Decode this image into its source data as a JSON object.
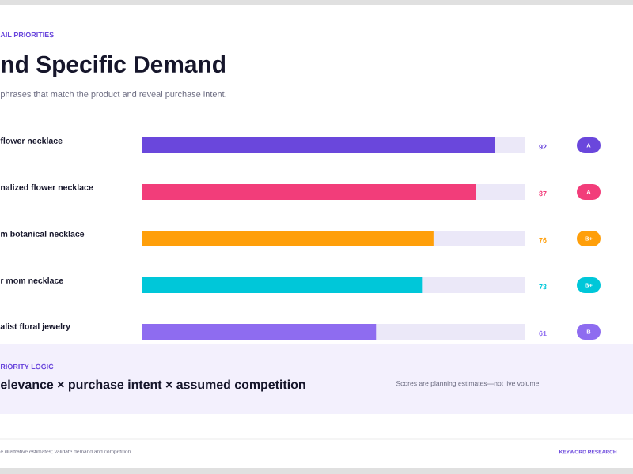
{
  "chart_data": {
    "type": "bar",
    "orientation": "horizontal",
    "title": "nd Specific Demand",
    "subtitle": "phrases that match the product and reveal purchase intent.",
    "categories": [
      "flower necklace",
      "nalized flower necklace",
      "m botanical necklace",
      "r mom necklace",
      "alist floral jewelry"
    ],
    "values": [
      92,
      87,
      76,
      73,
      61
    ],
    "colors": [
      "#6a47dc",
      "#f23d7a",
      "#ff9f0a",
      "#00c7d9",
      "#8e6cf0"
    ],
    "xlim": [
      0,
      100
    ],
    "data_labels": true,
    "annotations": [
      "AIL PRIORITIES",
      "A",
      "A",
      "B+",
      "B+",
      "B",
      "RIORITY LOGIC",
      "elevance × purchase intent × assumed competition",
      "Scores are planning estimates—not live volume.",
      "e illustrative estimates; validate demand and competition.",
      "KEYWORD RESEARCH"
    ]
  }
}
